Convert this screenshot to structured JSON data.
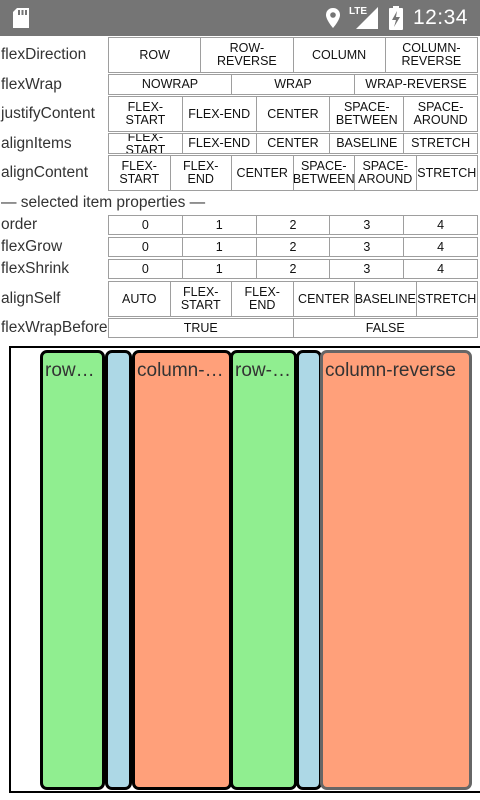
{
  "status_bar": {
    "time": "12:34",
    "network": "LTE",
    "icons": [
      "sd-card-icon",
      "location-icon",
      "signal-icon",
      "battery-charging-icon"
    ]
  },
  "controls": {
    "flexDirection": {
      "label": "flexDirection",
      "options": [
        "ROW",
        "ROW-REVERSE",
        "COLUMN",
        "COLUMN-REVERSE"
      ]
    },
    "flexWrap": {
      "label": "flexWrap",
      "options": [
        "NOWRAP",
        "WRAP",
        "WRAP-REVERSE"
      ]
    },
    "justifyContent": {
      "label": "justifyContent",
      "options": [
        "FLEX-START",
        "FLEX-END",
        "CENTER",
        "SPACE-BETWEEN",
        "SPACE-AROUND"
      ]
    },
    "alignItems": {
      "label": "alignItems",
      "options": [
        "FLEX-START",
        "FLEX-END",
        "CENTER",
        "BASELINE",
        "STRETCH"
      ]
    },
    "alignContent": {
      "label": "alignContent",
      "options": [
        "FLEX-START",
        "FLEX-END",
        "CENTER",
        "SPACE-BETWEEN",
        "SPACE-AROUND",
        "STRETCH"
      ]
    }
  },
  "item_section_title": "— selected item properties —",
  "item_controls": {
    "order": {
      "label": "order",
      "options": [
        "0",
        "1",
        "2",
        "3",
        "4"
      ]
    },
    "flexGrow": {
      "label": "flexGrow",
      "options": [
        "0",
        "1",
        "2",
        "3",
        "4"
      ]
    },
    "flexShrink": {
      "label": "flexShrink",
      "options": [
        "0",
        "1",
        "2",
        "3",
        "4"
      ]
    },
    "alignSelf": {
      "label": "alignSelf",
      "options": [
        "AUTO",
        "FLEX-START",
        "FLEX-END",
        "CENTER",
        "BASELINE",
        "STRETCH"
      ]
    },
    "flexWrapBefore": {
      "label": "flexWrapBefore",
      "options": [
        "TRUE",
        "FALSE"
      ]
    }
  },
  "demo_items": [
    {
      "text": "row-reverse",
      "color": "#90ee90"
    },
    {
      "text": "",
      "color": "#add8e6"
    },
    {
      "text": "column-reverse",
      "color": "#ffa07a"
    },
    {
      "text": "row-reverse",
      "color": "#90ee90"
    },
    {
      "text": "",
      "color": "#add8e6"
    },
    {
      "text": "column-reverse",
      "color": "#ffa07a"
    }
  ]
}
